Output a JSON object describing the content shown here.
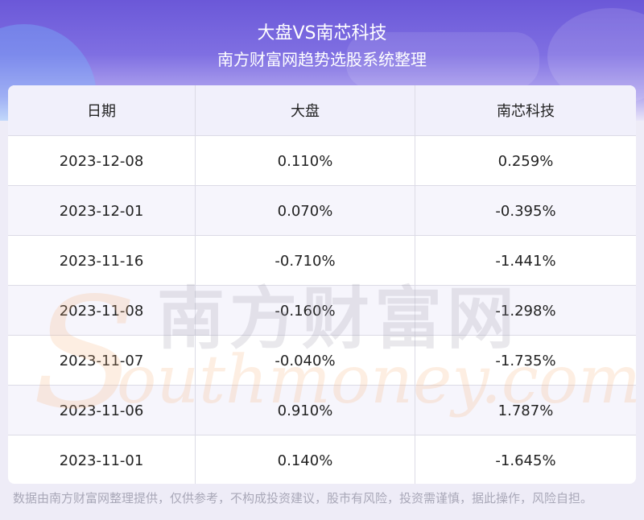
{
  "header": {
    "title": "大盘VS南芯科技",
    "subtitle": "南方财富网趋势选股系统整理"
  },
  "table": {
    "columns": [
      "日期",
      "大盘",
      "南芯科技"
    ],
    "rows": [
      [
        "2023-12-08",
        "0.110%",
        "0.259%"
      ],
      [
        "2023-12-01",
        "0.070%",
        "-0.395%"
      ],
      [
        "2023-11-16",
        "-0.710%",
        "-1.441%"
      ],
      [
        "2023-11-08",
        "-0.160%",
        "-1.298%"
      ],
      [
        "2023-11-07",
        "-0.040%",
        "-1.735%"
      ],
      [
        "2023-11-06",
        "0.910%",
        "1.787%"
      ],
      [
        "2023-11-01",
        "0.140%",
        "-1.645%"
      ]
    ]
  },
  "watermark": {
    "cn_text": "南方财富网",
    "en_text": "outhmoney.com",
    "logo_letter": "S"
  },
  "footer": {
    "disclaimer": "数据由南方财富网整理提供，仅供参考，不构成投资建议，股市有风险，投资需谨慎，据此操作，风险自担。"
  },
  "colors": {
    "header_top": "#6b58d8",
    "header_bottom": "#e9e6f8",
    "table_header_bg": "#f1f0fb",
    "watermark_orange": "#f7b27a"
  }
}
